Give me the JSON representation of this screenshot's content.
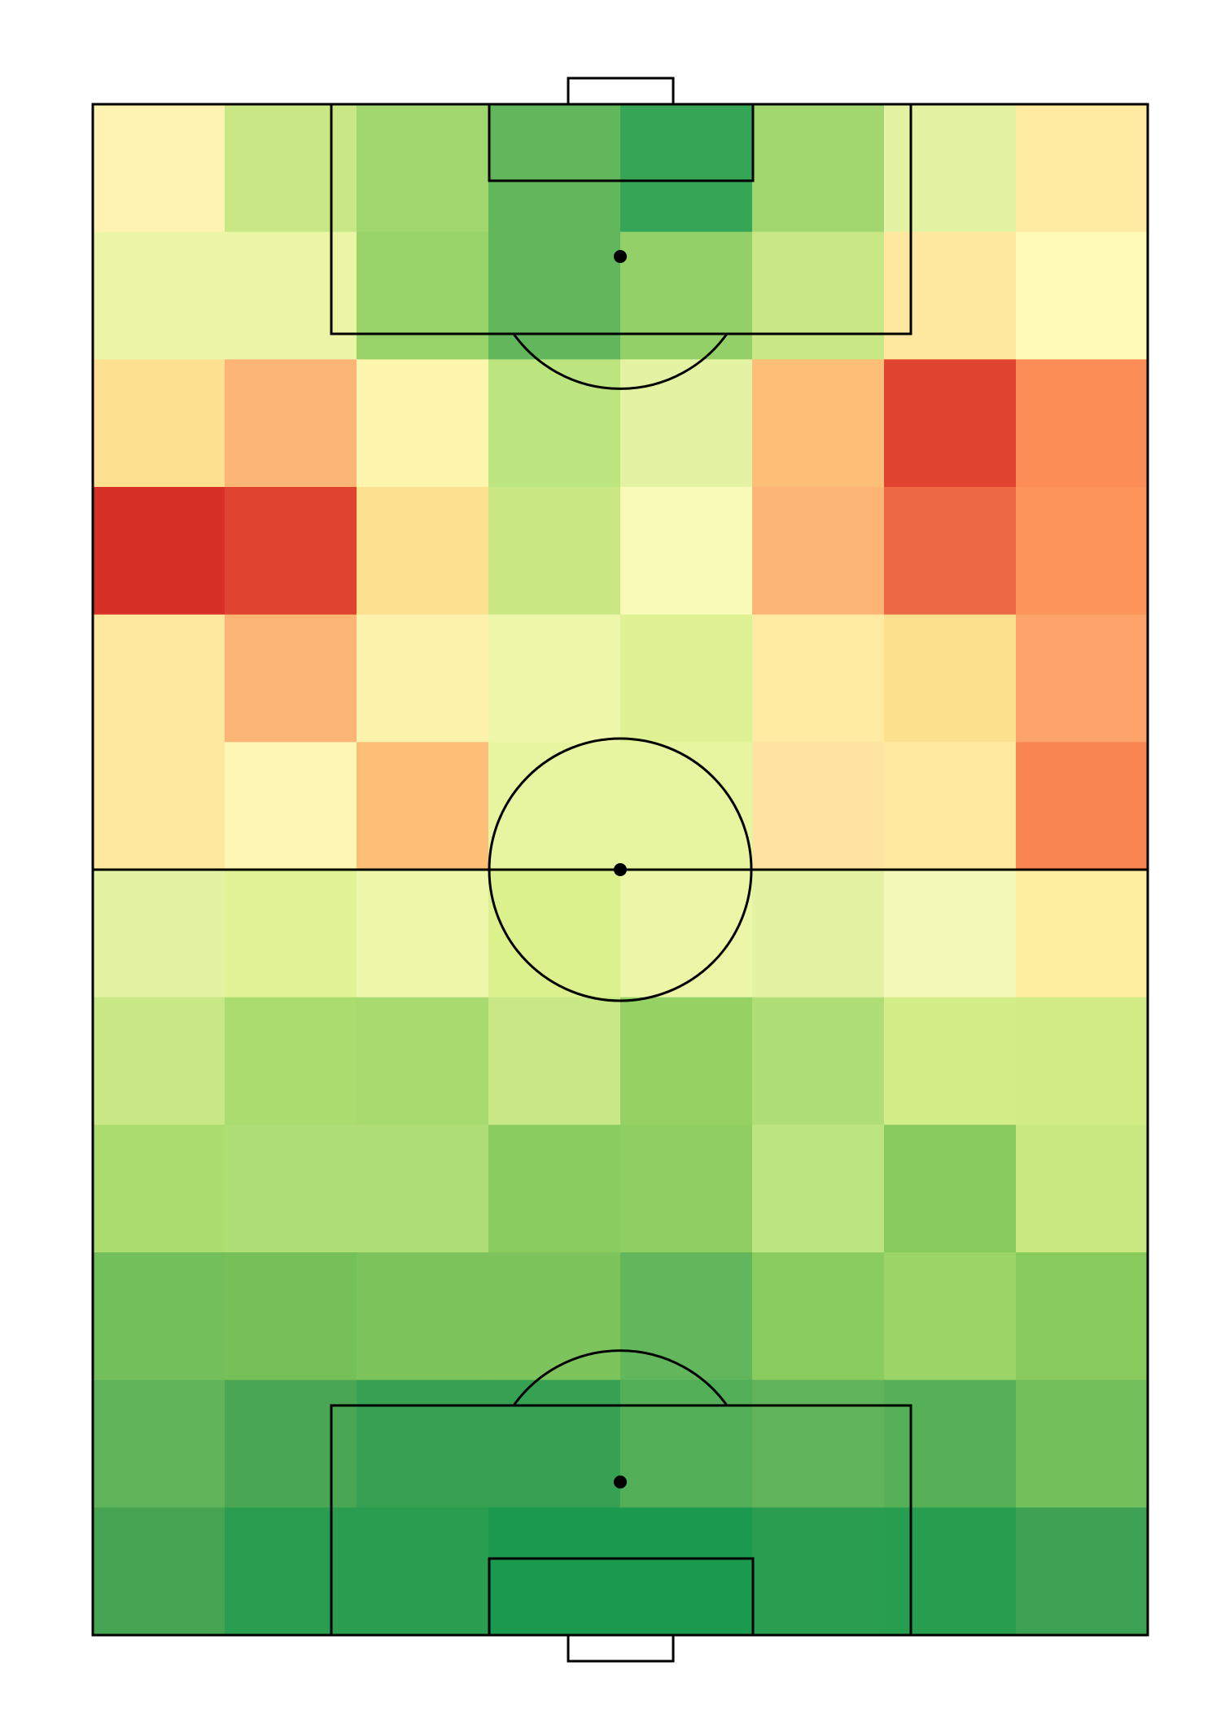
{
  "chart_data": {
    "type": "heatmap",
    "title": "",
    "xlabel": "",
    "ylabel": "",
    "colormap": "RdYlGn",
    "background": "#ffffff",
    "line_color": "#000000",
    "grid": false,
    "rows": 12,
    "cols": 8,
    "cells": [
      [
        "#fef3b0",
        "#c7e884",
        "#a2d770",
        "#62b65b",
        "#37a556",
        "#a2d770",
        "#e4f3a3",
        "#feeb9f"
      ],
      [
        "#eaf5a6",
        "#eaf5a6",
        "#98d36a",
        "#62b65b",
        "#93d068",
        "#c7e884",
        "#fee8a0",
        "#fdfbb6"
      ],
      [
        "#fee091",
        "#feb677",
        "#fef5ae",
        "#bce47f",
        "#e4f3a3",
        "#fdbf78",
        "#e04330",
        "#fd8d56"
      ],
      [
        "#d73127",
        "#e04330",
        "#fde191",
        "#c9e884",
        "#f9fab8",
        "#fdb576",
        "#ed6845",
        "#fd955b"
      ],
      [
        "#fee89e",
        "#fdb576",
        "#fdf2ac",
        "#eef6aa",
        "#def294",
        "#feeba1",
        "#fde08d",
        "#fea46a"
      ],
      [
        "#fee8a0",
        "#fef6b4",
        "#fdbf78",
        "#e8f5a0",
        "#e8f5a0",
        "#fee4a0",
        "#fee9a1",
        "#f98552"
      ],
      [
        "#e4f3a3",
        "#dff294",
        "#eff7aa",
        "#dbf18e",
        "#ebf7a6",
        "#e4f3a3",
        "#f5f9b8",
        "#feefa0"
      ],
      [
        "#c7e884",
        "#abdc6f",
        "#a7db70",
        "#c7e884",
        "#95d263",
        "#afdd76",
        "#d3ed88",
        "#d1ec85"
      ],
      [
        "#abdc6f",
        "#afdd76",
        "#afdd76",
        "#8bcc5f",
        "#8fce61",
        "#bce47f",
        "#89ca5d",
        "#c9e882"
      ],
      [
        "#72bf5b",
        "#76c05a",
        "#7dc45d",
        "#7dc45d",
        "#62b65b",
        "#8bcc5f",
        "#9dd468",
        "#89ca5d"
      ],
      [
        "#5fb45a",
        "#49a653",
        "#36a152",
        "#36a152",
        "#53ae58",
        "#5fb35b",
        "#55b058",
        "#73bf5b"
      ],
      [
        "#46a453",
        "#2b9d50",
        "#2b9d50",
        "#1b9a4f",
        "#1b9a4f",
        "#2b9d50",
        "#279d4f",
        "#3da153"
      ]
    ]
  }
}
